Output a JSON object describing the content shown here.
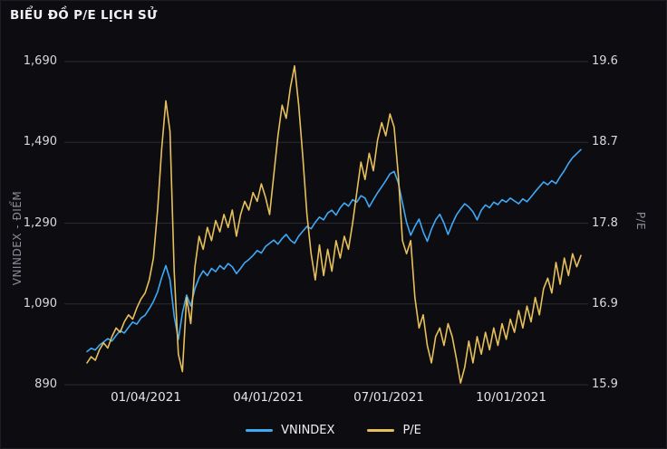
{
  "colors": {
    "background": "#0c0c11",
    "grid": "#2b2b33",
    "tick_text": "#d8d8de",
    "axis_title_text": "#8b8b95",
    "vnindex_line": "#3fa9f5",
    "pe_line": "#e6c05a"
  },
  "chart_data": {
    "type": "line",
    "title": "BIỂU ĐỒ P/E LỊCH SỬ",
    "grid": true,
    "legend_position": "bottom-center",
    "left_axis": {
      "label": "VNINDEX - ĐIỂM",
      "ticks": [
        "1,690",
        "1,490",
        "1,290",
        "1,090",
        "890"
      ],
      "min": 890,
      "max": 1690
    },
    "right_axis": {
      "label": "P/E",
      "ticks": [
        "19.6",
        "18.7",
        "17.8",
        "16.9",
        "15.9"
      ],
      "min": 15.9,
      "max": 19.6
    },
    "x_ticks": [
      "01/04/2021",
      "04/01/2021",
      "07/01/2021",
      "10/01/2021"
    ],
    "series": [
      {
        "name": "VNINDEX",
        "axis": "left",
        "color": "#3fa9f5",
        "values": [
          972,
          980,
          976,
          988,
          996,
          1004,
          998,
          1012,
          1024,
          1018,
          1032,
          1045,
          1040,
          1055,
          1062,
          1078,
          1096,
          1120,
          1155,
          1185,
          1150,
          1060,
          1002,
          1068,
          1112,
          1085,
          1128,
          1155,
          1172,
          1160,
          1178,
          1170,
          1185,
          1176,
          1190,
          1182,
          1165,
          1178,
          1192,
          1200,
          1210,
          1222,
          1216,
          1232,
          1240,
          1248,
          1238,
          1252,
          1262,
          1248,
          1240,
          1258,
          1270,
          1282,
          1276,
          1292,
          1305,
          1298,
          1315,
          1322,
          1310,
          1328,
          1340,
          1332,
          1348,
          1342,
          1358,
          1352,
          1330,
          1348,
          1365,
          1380,
          1395,
          1412,
          1418,
          1390,
          1340,
          1292,
          1260,
          1282,
          1300,
          1268,
          1245,
          1275,
          1298,
          1312,
          1290,
          1262,
          1288,
          1310,
          1325,
          1338,
          1330,
          1318,
          1298,
          1322,
          1335,
          1328,
          1342,
          1336,
          1348,
          1342,
          1352,
          1345,
          1338,
          1350,
          1343,
          1355,
          1368,
          1380,
          1392,
          1385,
          1395,
          1388,
          1405,
          1420,
          1438,
          1452,
          1462,
          1472
        ]
      },
      {
        "name": "P/E",
        "axis": "right",
        "color": "#e6c05a",
        "values": [
          16.15,
          16.22,
          16.18,
          16.3,
          16.38,
          16.32,
          16.45,
          16.55,
          16.5,
          16.62,
          16.7,
          16.65,
          16.78,
          16.88,
          16.95,
          17.1,
          17.35,
          17.9,
          18.6,
          19.15,
          18.8,
          17.2,
          16.25,
          16.05,
          16.9,
          16.6,
          17.25,
          17.6,
          17.45,
          17.7,
          17.55,
          17.78,
          17.65,
          17.85,
          17.7,
          17.9,
          17.6,
          17.85,
          18.0,
          17.9,
          18.1,
          18.0,
          18.2,
          18.05,
          17.85,
          18.3,
          18.75,
          19.1,
          18.95,
          19.3,
          19.55,
          19.1,
          18.5,
          17.85,
          17.4,
          17.1,
          17.5,
          17.15,
          17.45,
          17.2,
          17.55,
          17.35,
          17.6,
          17.45,
          17.75,
          18.1,
          18.45,
          18.25,
          18.55,
          18.35,
          18.7,
          18.9,
          18.75,
          19.0,
          18.85,
          18.3,
          17.55,
          17.4,
          17.55,
          16.9,
          16.55,
          16.7,
          16.35,
          16.15,
          16.45,
          16.55,
          16.35,
          16.6,
          16.45,
          16.2,
          15.92,
          16.1,
          16.4,
          16.15,
          16.45,
          16.25,
          16.5,
          16.3,
          16.55,
          16.35,
          16.6,
          16.42,
          16.65,
          16.5,
          16.75,
          16.55,
          16.8,
          16.62,
          16.9,
          16.7,
          17.0,
          17.12,
          16.95,
          17.3,
          17.05,
          17.35,
          17.15,
          17.4,
          17.25,
          17.38
        ]
      }
    ],
    "legend": [
      "VNINDEX",
      "P/E"
    ]
  }
}
